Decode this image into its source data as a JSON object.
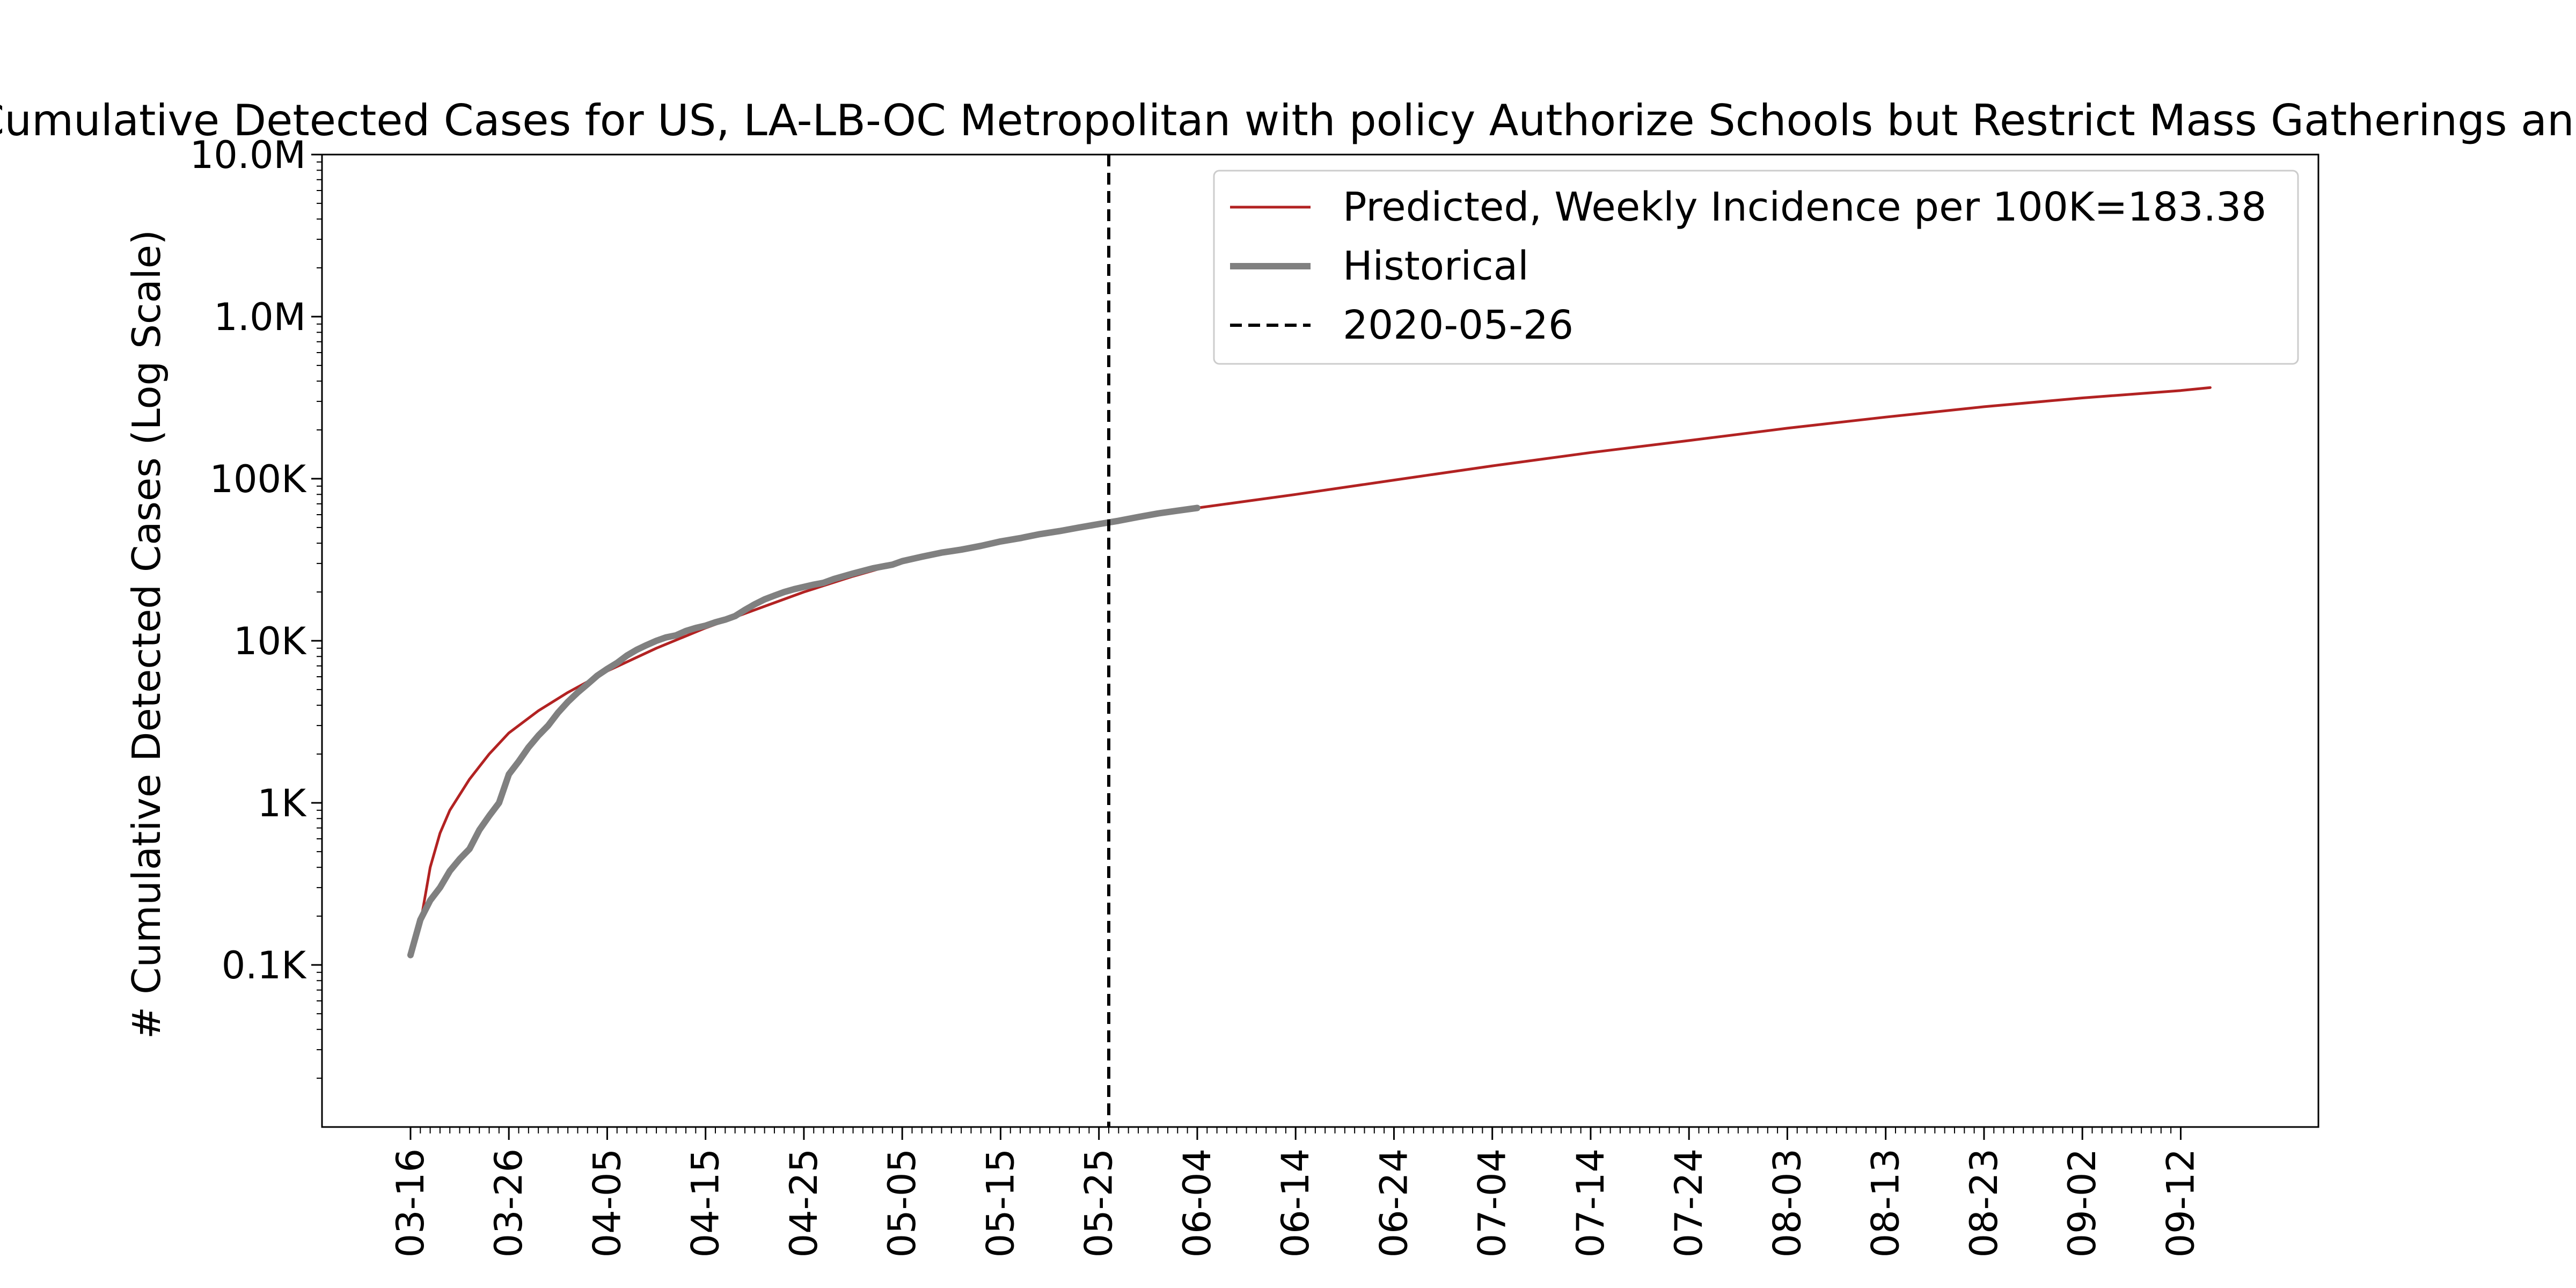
{
  "chart_data": {
    "type": "line",
    "title": "Cumulative Detected Cases for US, LA-LB-OC Metropolitan with policy Authorize Schools but Restrict Mass Gatherings and",
    "xlabel": "",
    "ylabel": "# Cumulative Detected Cases (Log Scale)",
    "y_scale": "log",
    "ylim": [
      10,
      10000000
    ],
    "xlim": [
      "2020-03-07",
      "2020-09-26"
    ],
    "y_ticks": [
      {
        "value": 100,
        "label": "0.1K"
      },
      {
        "value": 1000,
        "label": "1K"
      },
      {
        "value": 10000,
        "label": "10K"
      },
      {
        "value": 100000,
        "label": "100K"
      },
      {
        "value": 1000000,
        "label": "1.0M"
      },
      {
        "value": 10000000,
        "label": "10.0M"
      }
    ],
    "x_ticks": [
      {
        "value": "2020-03-16",
        "label": "03-16"
      },
      {
        "value": "2020-03-26",
        "label": "03-26"
      },
      {
        "value": "2020-04-05",
        "label": "04-05"
      },
      {
        "value": "2020-04-15",
        "label": "04-15"
      },
      {
        "value": "2020-04-25",
        "label": "04-25"
      },
      {
        "value": "2020-05-05",
        "label": "05-05"
      },
      {
        "value": "2020-05-15",
        "label": "05-15"
      },
      {
        "value": "2020-05-25",
        "label": "05-25"
      },
      {
        "value": "2020-06-04",
        "label": "06-04"
      },
      {
        "value": "2020-06-14",
        "label": "06-14"
      },
      {
        "value": "2020-06-24",
        "label": "06-24"
      },
      {
        "value": "2020-07-04",
        "label": "07-04"
      },
      {
        "value": "2020-07-14",
        "label": "07-14"
      },
      {
        "value": "2020-07-24",
        "label": "07-24"
      },
      {
        "value": "2020-08-03",
        "label": "08-03"
      },
      {
        "value": "2020-08-13",
        "label": "08-13"
      },
      {
        "value": "2020-08-23",
        "label": "08-23"
      },
      {
        "value": "2020-09-02",
        "label": "09-02"
      },
      {
        "value": "2020-09-12",
        "label": "09-12"
      }
    ],
    "series": [
      {
        "name": "Predicted, Weekly Incidence per 100K=183.38",
        "color": "#b22222",
        "style": "solid",
        "points": [
          [
            "2020-03-17",
            180
          ],
          [
            "2020-03-18",
            400
          ],
          [
            "2020-03-19",
            650
          ],
          [
            "2020-03-20",
            900
          ],
          [
            "2020-03-22",
            1400
          ],
          [
            "2020-03-24",
            2000
          ],
          [
            "2020-03-26",
            2700
          ],
          [
            "2020-03-29",
            3700
          ],
          [
            "2020-04-01",
            4800
          ],
          [
            "2020-04-05",
            6500
          ],
          [
            "2020-04-10",
            9000
          ],
          [
            "2020-04-15",
            12000
          ],
          [
            "2020-04-20",
            15500
          ],
          [
            "2020-04-25",
            20000
          ],
          [
            "2020-04-30",
            25000
          ],
          [
            "2020-05-05",
            30500
          ],
          [
            "2020-05-10",
            36000
          ],
          [
            "2020-05-15",
            42000
          ],
          [
            "2020-05-20",
            47000
          ],
          [
            "2020-05-26",
            55000
          ],
          [
            "2020-06-01",
            62000
          ],
          [
            "2020-06-04",
            66000
          ],
          [
            "2020-06-14",
            80000
          ],
          [
            "2020-06-24",
            98000
          ],
          [
            "2020-07-04",
            120000
          ],
          [
            "2020-07-14",
            145000
          ],
          [
            "2020-07-24",
            172000
          ],
          [
            "2020-08-03",
            205000
          ],
          [
            "2020-08-13",
            240000
          ],
          [
            "2020-08-23",
            278000
          ],
          [
            "2020-09-02",
            315000
          ],
          [
            "2020-09-12",
            350000
          ],
          [
            "2020-09-15",
            365000
          ]
        ]
      },
      {
        "name": "Historical",
        "color": "#808080",
        "style": "solid",
        "points": [
          [
            "2020-03-16",
            115
          ],
          [
            "2020-03-17",
            190
          ],
          [
            "2020-03-18",
            250
          ],
          [
            "2020-03-19",
            300
          ],
          [
            "2020-03-20",
            380
          ],
          [
            "2020-03-21",
            450
          ],
          [
            "2020-03-22",
            520
          ],
          [
            "2020-03-23",
            680
          ],
          [
            "2020-03-24",
            830
          ],
          [
            "2020-03-25",
            1000
          ],
          [
            "2020-03-26",
            1500
          ],
          [
            "2020-03-27",
            1800
          ],
          [
            "2020-03-28",
            2200
          ],
          [
            "2020-03-29",
            2600
          ],
          [
            "2020-03-30",
            3000
          ],
          [
            "2020-03-31",
            3600
          ],
          [
            "2020-04-01",
            4200
          ],
          [
            "2020-04-02",
            4800
          ],
          [
            "2020-04-03",
            5400
          ],
          [
            "2020-04-04",
            6100
          ],
          [
            "2020-04-05",
            6700
          ],
          [
            "2020-04-06",
            7300
          ],
          [
            "2020-04-07",
            8100
          ],
          [
            "2020-04-08",
            8800
          ],
          [
            "2020-04-09",
            9400
          ],
          [
            "2020-04-10",
            10000
          ],
          [
            "2020-04-11",
            10500
          ],
          [
            "2020-04-12",
            10800
          ],
          [
            "2020-04-13",
            11500
          ],
          [
            "2020-04-14",
            12000
          ],
          [
            "2020-04-15",
            12400
          ],
          [
            "2020-04-16",
            13000
          ],
          [
            "2020-04-17",
            13500
          ],
          [
            "2020-04-18",
            14200
          ],
          [
            "2020-04-19",
            15500
          ],
          [
            "2020-04-20",
            16800
          ],
          [
            "2020-04-21",
            18000
          ],
          [
            "2020-04-22",
            19000
          ],
          [
            "2020-04-23",
            20000
          ],
          [
            "2020-04-24",
            20800
          ],
          [
            "2020-04-25",
            21500
          ],
          [
            "2020-04-26",
            22200
          ],
          [
            "2020-04-27",
            22800
          ],
          [
            "2020-04-28",
            24000
          ],
          [
            "2020-04-30",
            26000
          ],
          [
            "2020-05-02",
            28000
          ],
          [
            "2020-05-04",
            29500
          ],
          [
            "2020-05-05",
            31000
          ],
          [
            "2020-05-07",
            33000
          ],
          [
            "2020-05-09",
            35000
          ],
          [
            "2020-05-11",
            36500
          ],
          [
            "2020-05-13",
            38500
          ],
          [
            "2020-05-15",
            41000
          ],
          [
            "2020-05-17",
            43000
          ],
          [
            "2020-05-19",
            45500
          ],
          [
            "2020-05-21",
            47500
          ],
          [
            "2020-05-23",
            50000
          ],
          [
            "2020-05-25",
            52500
          ],
          [
            "2020-05-27",
            55000
          ],
          [
            "2020-05-29",
            58000
          ],
          [
            "2020-05-31",
            61000
          ],
          [
            "2020-06-02",
            63500
          ],
          [
            "2020-06-04",
            66000
          ]
        ]
      }
    ],
    "vlines": [
      {
        "x": "2020-05-26",
        "label": "2020-05-26",
        "color": "#000000",
        "style": "dashed"
      }
    ],
    "legend": {
      "position": "top-right"
    },
    "grid": false
  }
}
